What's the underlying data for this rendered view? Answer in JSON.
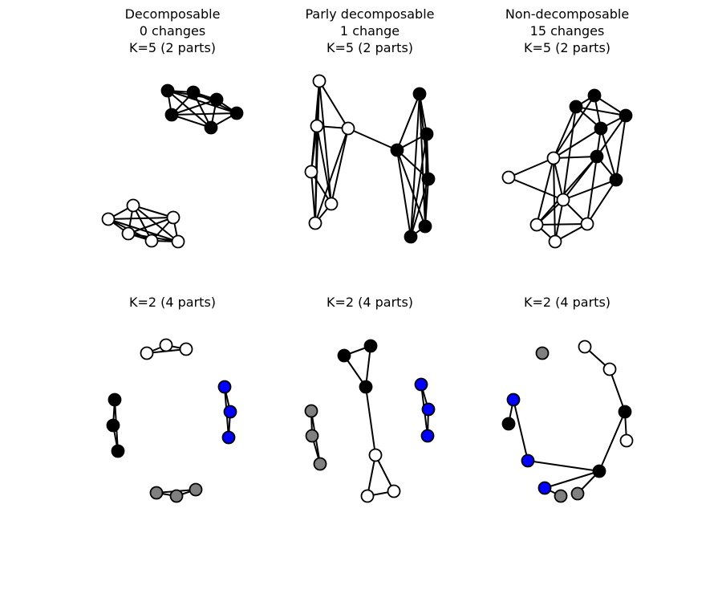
{
  "panels": [
    {
      "title_lines": [
        "Decomposable",
        "0 changes",
        "K=5 (2 parts)"
      ]
    },
    {
      "title_lines": [
        "Parly decomposable",
        "1 change",
        "K=5 (2 parts)"
      ]
    },
    {
      "title_lines": [
        "Non-decomposable",
        "15 changes",
        "K=5 (2 parts)"
      ]
    },
    {
      "title_lines": [
        "K=2 (4 parts)"
      ]
    },
    {
      "title_lines": [
        "K=2 (4 parts)"
      ]
    },
    {
      "title_lines": [
        "K=2 (4 parts)"
      ]
    }
  ],
  "colors": {
    "black": "#000000",
    "white": "#ffffff",
    "blue": "#0000ff",
    "gray": "#808080"
  }
}
